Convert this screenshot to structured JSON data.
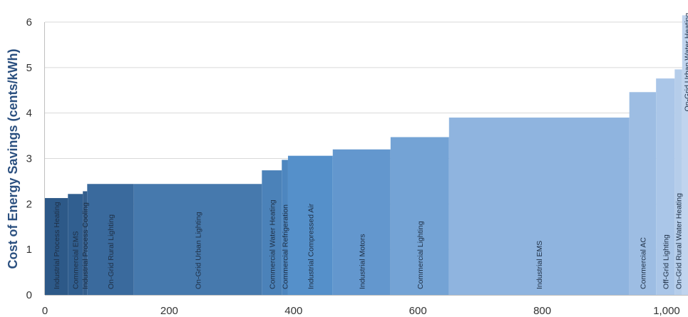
{
  "chart_data": {
    "type": "bar",
    "subtype": "supply-curve",
    "ylabel": "Cost of Energy Savings (cents/kWh)",
    "xlabel": "",
    "xlim": [
      0,
      1000
    ],
    "ylim": [
      0,
      6
    ],
    "xticks": [
      "0",
      "200",
      "400",
      "600",
      "800",
      "1,000"
    ],
    "yticks": [
      "0",
      "1",
      "2",
      "3",
      "4",
      "5",
      "6"
    ],
    "grid": "horizontal",
    "segments": [
      {
        "label": "Industrial Process Heating",
        "x_start": 0,
        "x_end": 37,
        "value": 2.13,
        "color": "#2d5988"
      },
      {
        "label": "Commercial EMS",
        "x_start": 37,
        "x_end": 61,
        "value": 2.22,
        "color": "#315f90"
      },
      {
        "label": "Industrial Process Cooling",
        "x_start": 61,
        "x_end": 68,
        "value": 2.28,
        "color": "#345e8c"
      },
      {
        "label": "On-Grid Rural Lighting",
        "x_start": 68,
        "x_end": 143,
        "value": 2.44,
        "color": "#3a6a9d"
      },
      {
        "label": "On-Grid Urban Lighting",
        "x_start": 143,
        "x_end": 349,
        "value": 2.44,
        "color": "#4679ad"
      },
      {
        "label": "Commercial Water Heating",
        "x_start": 349,
        "x_end": 381,
        "value": 2.74,
        "color": "#4b82b9"
      },
      {
        "label": "Commercial Refrigeration",
        "x_start": 381,
        "x_end": 391,
        "value": 2.97,
        "color": "#4d86bf"
      },
      {
        "label": "Industrial Compressed Air",
        "x_start": 391,
        "x_end": 463,
        "value": 3.06,
        "color": "#5590ca"
      },
      {
        "label": "Industrial Motors",
        "x_start": 463,
        "x_end": 556,
        "value": 3.2,
        "color": "#6397ce"
      },
      {
        "label": "Commercial Lighting",
        "x_start": 556,
        "x_end": 650,
        "value": 3.47,
        "color": "#74a3d5"
      },
      {
        "label": "Industrial EMS",
        "x_start": 650,
        "x_end": 940,
        "value": 3.9,
        "color": "#8fb4df"
      },
      {
        "label": "Commercial AC",
        "x_start": 940,
        "x_end": 983,
        "value": 4.46,
        "color": "#9dbde3"
      },
      {
        "label": "Off-Grid Lighting",
        "x_start": 983,
        "x_end": 1013,
        "value": 4.76,
        "color": "#aac6e8"
      },
      {
        "label": "On-Grid Rural Water Heating",
        "x_start": 1013,
        "x_end": 1025,
        "value": 4.96,
        "color": "#b5cdea"
      },
      {
        "label": "On-Grid Urban Water Heating",
        "x_start": 1025,
        "x_end": 1040,
        "value": 6.15,
        "color": "#c0d4ee"
      }
    ],
    "colors": {
      "grid": "#d9d9d9",
      "axis": "#bfbfbf",
      "label_text": "#1e2f45",
      "ylabel": "#2a4f7f"
    }
  }
}
